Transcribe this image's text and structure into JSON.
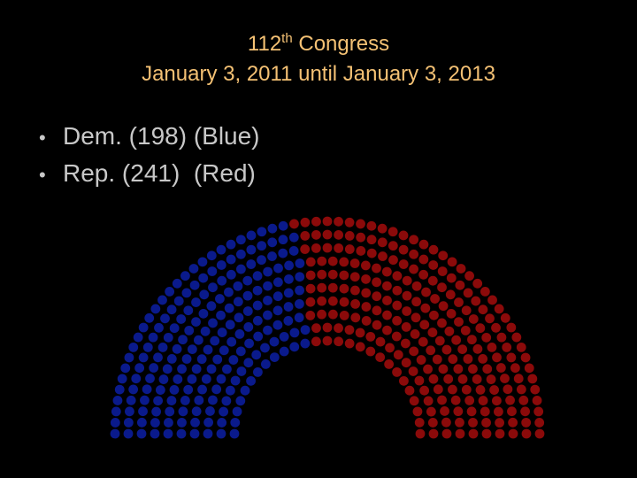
{
  "title": {
    "number": "112",
    "ordinal_suffix": "th",
    "name": " Congress",
    "dates": "January 3, 2011 until January 3, 2013",
    "color": "#F4C174"
  },
  "bullets": [
    {
      "marker": "•",
      "text": "Dem. (198) (Blue)"
    },
    {
      "marker": "•",
      "text": "Rep. (241)  (Red)"
    }
  ],
  "text_color": "#C8C8C8",
  "chamber": {
    "parties": [
      {
        "party": "Dem.",
        "seats": 198,
        "color": "#0A1A8C"
      },
      {
        "party": "Rep.",
        "seats": 241,
        "color": "#8B0A0A"
      }
    ],
    "rows": 10
  }
}
